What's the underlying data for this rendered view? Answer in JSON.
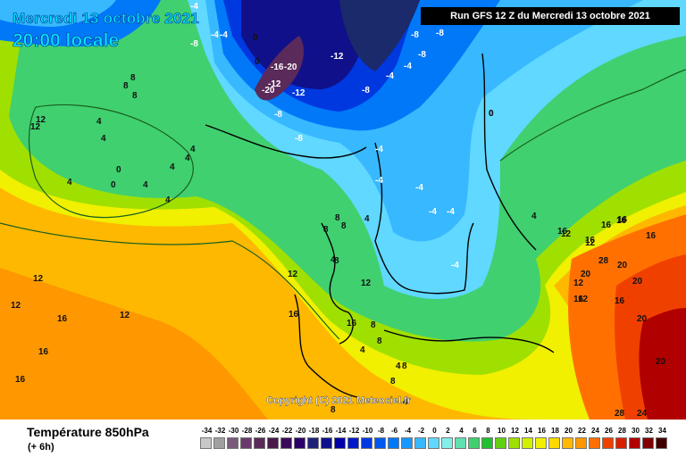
{
  "header": {
    "title_date": "Mercredi 13 octobre 2021",
    "title_time": "20:00 locale",
    "run_info": "Run GFS 12 Z du Mercredi 13 octobre 2021"
  },
  "copyright": "Copyright (C) 2021 Meteociel.fr",
  "legend": {
    "title": "Température 850hPa",
    "subtitle": "(+ 6h)",
    "scale_values": [
      "-34",
      "-32",
      "-30",
      "-28",
      "-26",
      "-24",
      "-22",
      "-20",
      "-18",
      "-16",
      "-14",
      "-12",
      "-10",
      "-8",
      "-6",
      "-4",
      "-2",
      "0",
      "2",
      "4",
      "6",
      "8",
      "10",
      "12",
      "14",
      "16",
      "18",
      "20",
      "22",
      "24",
      "26",
      "28",
      "30",
      "32",
      "34"
    ],
    "scale_colors": [
      "#c8c8c8",
      "#a0a0a0",
      "#7a5a7a",
      "#6a3a6a",
      "#5a2a5a",
      "#4a1a4a",
      "#3a0a5a",
      "#2a006a",
      "#20207a",
      "#10108a",
      "#0000aa",
      "#0018c8",
      "#0038e0",
      "#0058f0",
      "#0078f8",
      "#1898ff",
      "#38b8ff",
      "#60d8ff",
      "#80f0e8",
      "#60e0b0",
      "#40d070",
      "#20c030",
      "#60d010",
      "#a0e000",
      "#d0f000",
      "#f0f000",
      "#ffd800",
      "#ffb800",
      "#ff9800",
      "#ff7000",
      "#f04000",
      "#d82000",
      "#b00000",
      "#800000",
      "#400000"
    ]
  },
  "map_labels": [
    {
      "t": "-4"
    },
    {
      "t": "-8"
    },
    {
      "t": "-4"
    },
    {
      "t": "-4"
    },
    {
      "t": "0"
    },
    {
      "t": "0"
    },
    {
      "t": "-12"
    },
    {
      "t": "-8"
    },
    {
      "t": "-16"
    },
    {
      "t": "-20"
    },
    {
      "t": "-20"
    },
    {
      "t": "-12"
    },
    {
      "t": "-8"
    },
    {
      "t": "-12"
    },
    {
      "t": "-8"
    },
    {
      "t": "-4"
    },
    {
      "t": "-8"
    },
    {
      "t": "-4"
    },
    {
      "t": "-8"
    },
    {
      "t": "-8"
    },
    {
      "t": "-4"
    },
    {
      "t": "-4"
    },
    {
      "t": "0"
    },
    {
      "t": "-4"
    },
    {
      "t": "-4"
    },
    {
      "t": "-4"
    },
    {
      "t": "-4"
    },
    {
      "t": "8"
    },
    {
      "t": "8"
    },
    {
      "t": "8"
    },
    {
      "t": "4"
    },
    {
      "t": "4"
    },
    {
      "t": "0"
    },
    {
      "t": "0"
    },
    {
      "t": "4"
    },
    {
      "t": "4"
    },
    {
      "t": "4"
    },
    {
      "t": "4"
    },
    {
      "t": "4"
    },
    {
      "t": "4"
    },
    {
      "t": "12"
    },
    {
      "t": "12"
    },
    {
      "t": "12"
    },
    {
      "t": "12"
    },
    {
      "t": "16"
    },
    {
      "t": "16"
    },
    {
      "t": "16"
    },
    {
      "t": "12"
    },
    {
      "t": "16"
    },
    {
      "t": "12"
    },
    {
      "t": "16"
    },
    {
      "t": "12"
    },
    {
      "t": "8"
    },
    {
      "t": "8"
    },
    {
      "t": "8"
    },
    {
      "t": "8"
    },
    {
      "t": "4"
    },
    {
      "t": "4"
    },
    {
      "t": "0"
    },
    {
      "t": "4"
    },
    {
      "t": "8"
    },
    {
      "t": "8"
    },
    {
      "t": "12"
    },
    {
      "t": "12"
    },
    {
      "t": "16"
    },
    {
      "t": "16"
    },
    {
      "t": "16"
    },
    {
      "t": "16"
    },
    {
      "t": "20"
    },
    {
      "t": "20"
    },
    {
      "t": "20"
    },
    {
      "t": "20"
    },
    {
      "t": "24"
    },
    {
      "t": "28"
    },
    {
      "t": "28"
    },
    {
      "t": "20"
    },
    {
      "t": "16"
    },
    {
      "t": "16"
    },
    {
      "t": "16"
    },
    {
      "t": "12"
    },
    {
      "t": "12"
    },
    {
      "t": "16"
    },
    {
      "t": "8"
    },
    {
      "t": "8"
    },
    {
      "t": "4"
    },
    {
      "t": "4"
    },
    {
      "t": "4"
    },
    {
      "t": "8"
    },
    {
      "t": "12"
    },
    {
      "t": "12"
    }
  ]
}
